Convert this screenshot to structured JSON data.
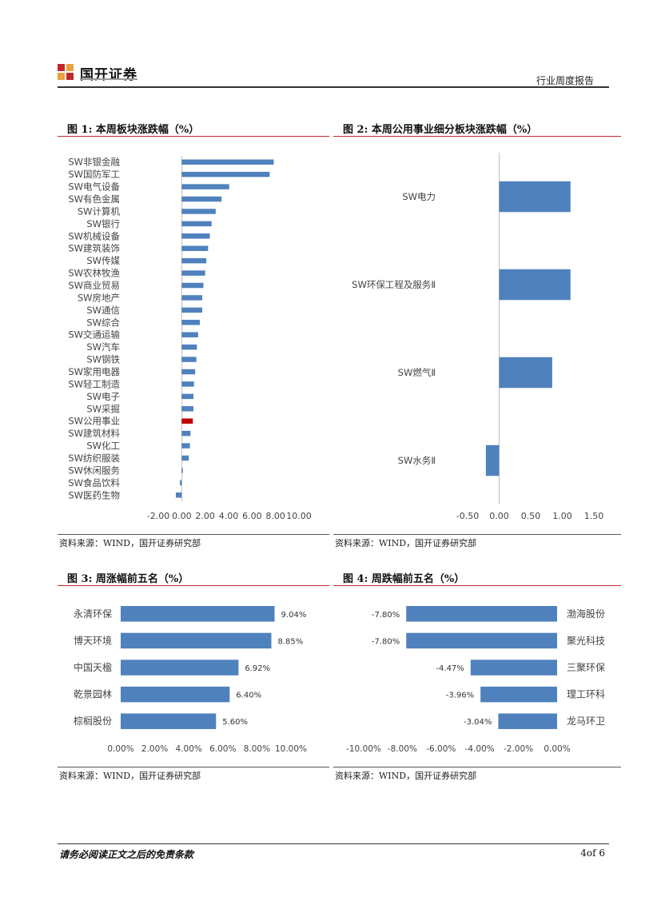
{
  "header": {
    "company": "国开证券",
    "report_type": "行业周度报告"
  },
  "figures": [
    {
      "title": "图 1:  本周板块涨跌幅（%）",
      "source": "资料来源：WIND，国开证券研究部"
    },
    {
      "title": "图 2:  本周公用事业细分板块涨跌幅（%）",
      "source": "资料来源：WIND，国开证券研究部"
    },
    {
      "title": "图 3:  周涨幅前五名（%）",
      "source": "资料来源：WIND，国开证券研究部"
    },
    {
      "title": "图 4:  周跌幅前五名（%）",
      "source": "资料来源：WIND，国开证券研究部"
    }
  ],
  "chart_data": [
    {
      "type": "bar",
      "orientation": "horizontal",
      "title": "图 1:  本周板块涨跌幅（%）",
      "categories": [
        "SW非银金融",
        "SW国防军工",
        "SW电气设备",
        "SW有色金属",
        "SW计算机",
        "SW银行",
        "SW机械设备",
        "SW建筑装饰",
        "SW传媒",
        "SW农林牧渔",
        "SW商业贸易",
        "SW房地产",
        "SW通信",
        "SW综合",
        "SW交通运输",
        "SW汽车",
        "SW钢铁",
        "SW家用电器",
        "SW轻工制造",
        "SW电子",
        "SW采掘",
        "SW公用事业",
        "SW建筑材料",
        "SW化工",
        "SW纺织服装",
        "SW休闲服务",
        "SW食品饮料",
        "SW医药生物"
      ],
      "values": [
        7.85,
        7.5,
        4.05,
        3.4,
        2.9,
        2.55,
        2.4,
        2.25,
        2.1,
        2.0,
        1.85,
        1.75,
        1.75,
        1.55,
        1.4,
        1.3,
        1.25,
        1.15,
        1.05,
        1.0,
        1.0,
        0.95,
        0.75,
        0.7,
        0.6,
        0.1,
        -0.15,
        -0.5
      ],
      "highlight": "SW公用事业",
      "highlight_color": "#c00000",
      "bar_color": "#4f81bd",
      "xlim": [
        -2,
        10
      ],
      "ticks": [
        "-2.00",
        "0.00",
        "2.00",
        "4.00",
        "6.00",
        "8.00",
        "10.00"
      ],
      "grid": false
    },
    {
      "type": "bar",
      "orientation": "horizontal",
      "title": "图 2:  本周公用事业细分板块涨跌幅（%）",
      "categories": [
        "SW电力",
        "SW环保工程及服务Ⅱ",
        "SW燃气Ⅱ",
        "SW水务Ⅱ"
      ],
      "values": [
        1.13,
        1.13,
        0.84,
        -0.21
      ],
      "bar_color": "#4f81bd",
      "xlim": [
        -0.5,
        1.5
      ],
      "ticks": [
        "-0.50",
        "0.00",
        "0.50",
        "1.00",
        "1.50"
      ],
      "grid": false
    },
    {
      "type": "bar",
      "orientation": "horizontal",
      "title": "图 3:  周涨幅前五名（%）",
      "categories": [
        "永清环保",
        "博天环境",
        "中国天楹",
        "乾景园林",
        "棕榈股份"
      ],
      "values": [
        9.04,
        8.85,
        6.92,
        6.4,
        5.6
      ],
      "labels": [
        "9.04%",
        "8.85%",
        "6.92%",
        "6.40%",
        "5.60%"
      ],
      "bar_color": "#4f81bd",
      "xlim": [
        0,
        10
      ],
      "ticks": [
        "0.00%",
        "2.00%",
        "4.00%",
        "6.00%",
        "8.00%",
        "10.00%"
      ],
      "grid": false
    },
    {
      "type": "bar",
      "orientation": "horizontal",
      "title": "图 4:  周跌幅前五名（%）",
      "categories": [
        "渤海股份",
        "聚光科技",
        "三聚环保",
        "理工环科",
        "龙马环卫"
      ],
      "values": [
        -7.8,
        -7.8,
        -4.47,
        -3.96,
        -3.04
      ],
      "labels": [
        "-7.80%",
        "-7.80%",
        "-4.47%",
        "-3.96%",
        "-3.04%"
      ],
      "bar_color": "#4f81bd",
      "xlim": [
        -10,
        0
      ],
      "ticks": [
        "-10.00%",
        "-8.00%",
        "-6.00%",
        "-4.00%",
        "-2.00%",
        "0.00%"
      ],
      "grid": false
    }
  ],
  "footer": {
    "disclaimer": "请务必阅读正文之后的免责条款",
    "page": "4of 6"
  }
}
